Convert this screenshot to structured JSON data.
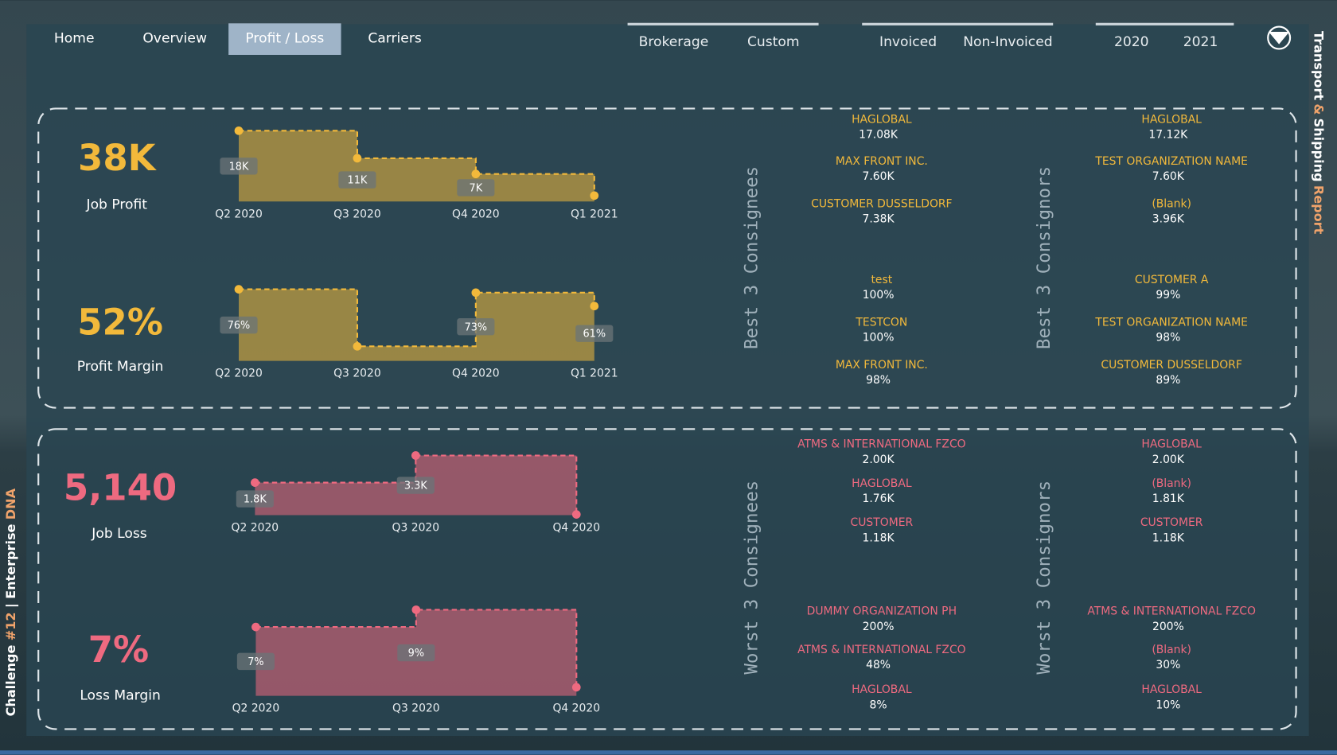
{
  "nav": [
    "Home",
    "Overview",
    "Profit / Loss",
    "Carriers"
  ],
  "filters": [
    [
      "Brokerage",
      "Custom"
    ],
    [
      "Invoiced",
      "Non-Invoiced"
    ],
    [
      "2020",
      "2021"
    ]
  ],
  "side_title": [
    "Transport",
    "&",
    "Shipping",
    "Report"
  ],
  "side_footer": [
    "Challenge",
    "#12",
    "|",
    "Enterprise",
    "DNA"
  ],
  "sections": [
    {
      "color": "#f2b93b",
      "kpis": [
        {
          "value": "38K",
          "label": "Job Profit",
          "chart": {
            "type": "step",
            "categories": [
              "Q2 2020",
              "Q3 2020",
              "Q4 2020",
              "Q1 2021"
            ],
            "values": [
              18000,
              11000,
              7000,
              1500
            ],
            "value_labels": [
              "18K",
              "11K",
              "7K",
              null
            ],
            "ylim": [
              0,
              18000
            ]
          }
        },
        {
          "value": "52%",
          "label": "Profit Margin",
          "chart": {
            "type": "step",
            "categories": [
              "Q2 2020",
              "Q3 2020",
              "Q4 2020",
              "Q1 2021"
            ],
            "values": [
              76,
              25,
              73,
              61
            ],
            "value_labels": [
              "76%",
              null,
              "73%",
              "61%"
            ],
            "ylim": [
              12,
              76
            ]
          }
        }
      ],
      "lists": [
        {
          "title": "Best 3 Consignees",
          "groups": [
            [
              {
                "name": "HAGLOBAL",
                "value": "17.08K"
              },
              {
                "name": "MAX FRONT INC.",
                "value": "7.60K"
              },
              {
                "name": "CUSTOMER DUSSELDORF",
                "value": "7.38K"
              }
            ],
            [
              {
                "name": "test",
                "value": "100%"
              },
              {
                "name": "TESTCON",
                "value": "100%"
              },
              {
                "name": "MAX FRONT INC.",
                "value": "98%"
              }
            ]
          ]
        },
        {
          "title": "Best 3 Consignors",
          "groups": [
            [
              {
                "name": "HAGLOBAL",
                "value": "17.12K"
              },
              {
                "name": "TEST ORGANIZATION NAME",
                "value": "7.60K"
              },
              {
                "name": "(Blank)",
                "value": "3.96K"
              }
            ],
            [
              {
                "name": "CUSTOMER A",
                "value": "99%"
              },
              {
                "name": "TEST ORGANIZATION NAME",
                "value": "98%"
              },
              {
                "name": "CUSTOMER DUSSELDORF",
                "value": "89%"
              }
            ]
          ]
        }
      ]
    },
    {
      "color": "#ee6a80",
      "kpis": [
        {
          "value": "5,140",
          "label": "Job Loss",
          "chart": {
            "type": "step",
            "categories": [
              "Q2 2020",
              "Q3 2020",
              "Q4 2020"
            ],
            "values": [
              1800,
              3300,
              40
            ],
            "value_labels": [
              "1.8K",
              "3.3K",
              null
            ],
            "ylim": [
              0,
              3300
            ]
          }
        },
        {
          "value": "7%",
          "label": "Loss Margin",
          "chart": {
            "type": "step",
            "categories": [
              "Q2 2020",
              "Q3 2020",
              "Q4 2020"
            ],
            "values": [
              7,
              9,
              0
            ],
            "value_labels": [
              "7%",
              "9%",
              null
            ],
            "ylim": [
              -1,
              9
            ]
          }
        }
      ],
      "lists": [
        {
          "title": "Worst 3 Consignees",
          "groups": [
            [
              {
                "name": "ATMS & INTERNATIONAL FZCO",
                "value": "2.00K"
              },
              {
                "name": "HAGLOBAL",
                "value": "1.76K"
              },
              {
                "name": "CUSTOMER",
                "value": "1.18K"
              }
            ],
            [
              {
                "name": "DUMMY ORGANIZATION PH",
                "value": "200%"
              },
              {
                "name": "ATMS & INTERNATIONAL FZCO",
                "value": "48%"
              },
              {
                "name": "HAGLOBAL",
                "value": "8%"
              }
            ]
          ]
        },
        {
          "title": "Worst 3 Consignors",
          "groups": [
            [
              {
                "name": "HAGLOBAL",
                "value": "2.00K"
              },
              {
                "name": "(Blank)",
                "value": "1.81K"
              },
              {
                "name": "CUSTOMER",
                "value": "1.18K"
              }
            ],
            [
              {
                "name": "ATMS & INTERNATIONAL FZCO",
                "value": "200%"
              },
              {
                "name": "(Blank)",
                "value": "30%"
              },
              {
                "name": "HAGLOBAL",
                "value": "10%"
              }
            ]
          ]
        }
      ]
    }
  ]
}
